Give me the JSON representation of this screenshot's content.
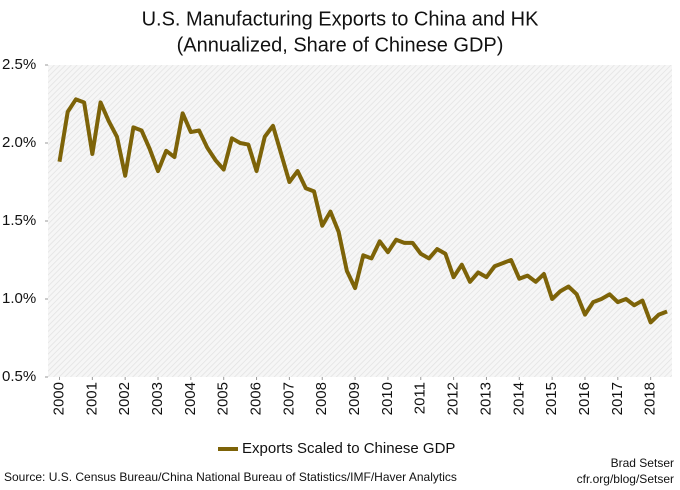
{
  "chart_data": {
    "type": "line",
    "title": "U.S. Manufacturing Exports to China and HK",
    "subtitle": "(Annualized, Share of Chinese GDP)",
    "x": [
      2000,
      2000.25,
      2000.5,
      2000.75,
      2001,
      2001.25,
      2001.5,
      2001.75,
      2002,
      2002.25,
      2002.5,
      2002.75,
      2003,
      2003.25,
      2003.5,
      2003.75,
      2004,
      2004.25,
      2004.5,
      2004.75,
      2005,
      2005.25,
      2005.5,
      2005.75,
      2006,
      2006.25,
      2006.5,
      2006.75,
      2007,
      2007.25,
      2007.5,
      2007.75,
      2008,
      2008.25,
      2008.5,
      2008.75,
      2009,
      2009.25,
      2009.5,
      2009.75,
      2010,
      2010.25,
      2010.5,
      2010.75,
      2011,
      2011.25,
      2011.5,
      2011.75,
      2012,
      2012.25,
      2012.5,
      2012.75,
      2013,
      2013.25,
      2013.5,
      2013.75,
      2014,
      2014.25,
      2014.5,
      2014.75,
      2015,
      2015.25,
      2015.5,
      2015.75,
      2016,
      2016.25,
      2016.5,
      2016.75,
      2017,
      2017.25,
      2017.5,
      2017.75,
      2018,
      2018.25,
      2018.5
    ],
    "series": [
      {
        "name": "Exports Scaled to Chinese GDP",
        "color": "#7d6308",
        "values": [
          1.88,
          2.2,
          2.28,
          2.26,
          1.93,
          2.26,
          2.14,
          2.04,
          1.79,
          2.1,
          2.08,
          1.96,
          1.82,
          1.95,
          1.91,
          2.19,
          2.07,
          2.08,
          1.97,
          1.89,
          1.83,
          2.03,
          2.0,
          1.99,
          1.82,
          2.04,
          2.11,
          1.93,
          1.75,
          1.82,
          1.71,
          1.69,
          1.47,
          1.56,
          1.43,
          1.18,
          1.07,
          1.28,
          1.26,
          1.37,
          1.3,
          1.38,
          1.36,
          1.36,
          1.29,
          1.26,
          1.32,
          1.29,
          1.14,
          1.22,
          1.11,
          1.17,
          1.14,
          1.21,
          1.23,
          1.25,
          1.13,
          1.15,
          1.11,
          1.16,
          1.0,
          1.05,
          1.08,
          1.03,
          0.9,
          0.98,
          1.0,
          1.03,
          0.98,
          1.0,
          0.96,
          0.99,
          0.85,
          0.9,
          0.92
        ]
      }
    ],
    "xlim": [
      1999.65,
      2018.65
    ],
    "xticks": [
      2000,
      2001,
      2002,
      2003,
      2004,
      2005,
      2006,
      2007,
      2008,
      2009,
      2010,
      2011,
      2012,
      2013,
      2014,
      2015,
      2016,
      2017,
      2018
    ],
    "ylim": [
      0.5,
      2.5
    ],
    "yticks": [
      {
        "value": 0.5,
        "label": "0.5%"
      },
      {
        "value": 1.0,
        "label": "1.0%"
      },
      {
        "value": 1.5,
        "label": "1.5%"
      },
      {
        "value": 2.0,
        "label": "2.0%"
      },
      {
        "value": 2.5,
        "label": "2.5%"
      }
    ],
    "legend": "bottom",
    "source": "Source: U.S. Census Bureau/China National Bureau of Statistics/IMF/Haver Analytics",
    "author": "Brad Setser",
    "author_url": "cfr.org/blog/Setser"
  }
}
